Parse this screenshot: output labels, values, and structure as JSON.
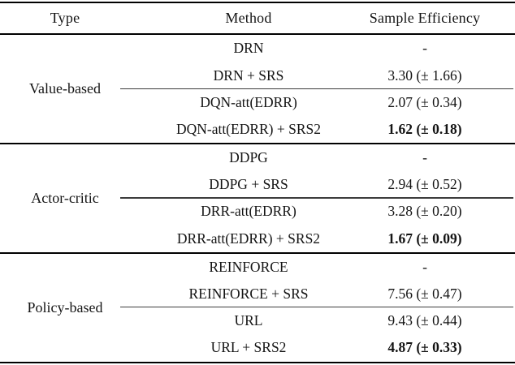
{
  "table": {
    "columns": {
      "type": "Type",
      "method": "Method",
      "sample_efficiency": "Sample Efficiency"
    },
    "groups": [
      {
        "type": "Value-based",
        "rows": [
          {
            "method": "DRN",
            "value": "-"
          },
          {
            "method": "DRN + SRS",
            "value": "3.30 (± 1.66)"
          },
          {
            "method": "DQN-att(EDRR)",
            "value": "2.07 (± 0.34)"
          },
          {
            "method": "DQN-att(EDRR) + SRS2",
            "value": "1.62 (± 0.18)",
            "bold": true
          }
        ]
      },
      {
        "type": "Actor-critic",
        "rows": [
          {
            "method": "DDPG",
            "value": "-"
          },
          {
            "method": "DDPG + SRS",
            "value": "2.94 (± 0.52)"
          },
          {
            "method": "DRR-att(EDRR)",
            "value": "3.28 (± 0.20)"
          },
          {
            "method": "DRR-att(EDRR) + SRS2",
            "value": "1.67 (± 0.09)",
            "bold": true
          }
        ]
      },
      {
        "type": "Policy-based",
        "rows": [
          {
            "method": "REINFORCE",
            "value": "-"
          },
          {
            "method": "REINFORCE + SRS",
            "value": "7.56 (± 0.47)"
          },
          {
            "method": "URL",
            "value": "9.43 (± 0.44)"
          },
          {
            "method": "URL + SRS2",
            "value": "4.87 (± 0.33)",
            "bold": true
          }
        ]
      }
    ],
    "text_color": "#141414",
    "rule_color": "#000000"
  }
}
